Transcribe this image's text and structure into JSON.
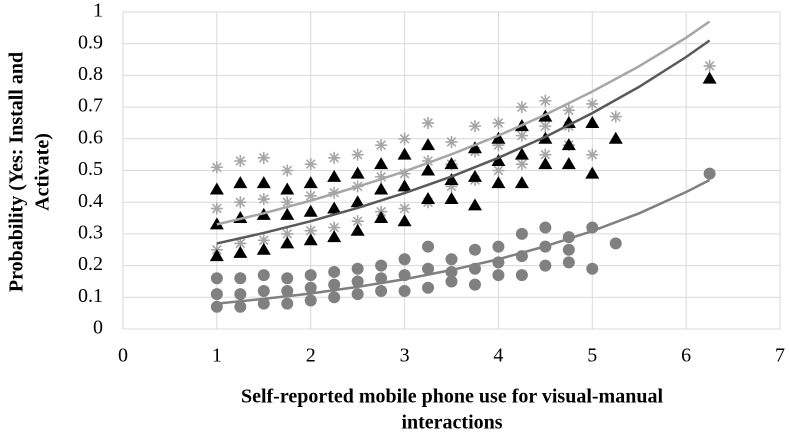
{
  "chart_data": {
    "type": "scatter",
    "x_label": [
      "Self-reported mobile phone use for visual-manual",
      "interactions"
    ],
    "y_label": [
      "Probability (Yes: Install and",
      "Activate)"
    ],
    "xlim": [
      0,
      7
    ],
    "xticks": [
      0,
      1,
      2,
      3,
      4,
      5,
      6,
      7
    ],
    "ylim": [
      0,
      1
    ],
    "yticks": [
      0,
      0.1,
      0.2,
      0.3,
      0.4,
      0.5,
      0.6,
      0.7,
      0.8,
      0.9,
      1
    ],
    "grid": true,
    "x": [
      1,
      1,
      1,
      1.25,
      1.25,
      1.25,
      1.5,
      1.5,
      1.5,
      1.75,
      1.75,
      1.75,
      2,
      2,
      2,
      2.25,
      2.25,
      2.25,
      2.5,
      2.5,
      2.5,
      2.75,
      2.75,
      2.75,
      3,
      3,
      3,
      3.25,
      3.25,
      3.25,
      3.5,
      3.5,
      3.5,
      3.75,
      3.75,
      3.75,
      4,
      4,
      4,
      4.25,
      4.25,
      4.25,
      4.5,
      4.5,
      4.5,
      4.75,
      4.75,
      4.75,
      5,
      5,
      5.25,
      6.25
    ],
    "series": [
      {
        "marker": "asterisk",
        "color": "#a6a6a6",
        "values": [
          0.25,
          0.38,
          0.51,
          0.27,
          0.4,
          0.53,
          0.28,
          0.41,
          0.54,
          0.3,
          0.4,
          0.5,
          0.31,
          0.42,
          0.52,
          0.32,
          0.43,
          0.54,
          0.34,
          0.45,
          0.55,
          0.37,
          0.48,
          0.58,
          0.38,
          0.49,
          0.6,
          0.4,
          0.53,
          0.65,
          0.45,
          0.52,
          0.59,
          0.47,
          0.56,
          0.64,
          0.5,
          0.58,
          0.65,
          0.52,
          0.61,
          0.7,
          0.55,
          0.64,
          0.72,
          0.58,
          0.64,
          0.69,
          0.55,
          0.71,
          0.67,
          0.83
        ]
      },
      {
        "marker": "triangle",
        "color": "#000000",
        "values": [
          0.23,
          0.33,
          0.44,
          0.24,
          0.35,
          0.46,
          0.25,
          0.36,
          0.46,
          0.27,
          0.36,
          0.44,
          0.28,
          0.37,
          0.46,
          0.29,
          0.38,
          0.48,
          0.31,
          0.4,
          0.49,
          0.35,
          0.44,
          0.52,
          0.34,
          0.45,
          0.55,
          0.41,
          0.5,
          0.58,
          0.41,
          0.47,
          0.52,
          0.39,
          0.48,
          0.57,
          0.46,
          0.53,
          0.6,
          0.46,
          0.55,
          0.64,
          0.52,
          0.6,
          0.67,
          0.52,
          0.58,
          0.65,
          0.49,
          0.65,
          0.6,
          0.79
        ]
      },
      {
        "marker": "circle",
        "color": "#808080",
        "values": [
          0.07,
          0.11,
          0.16,
          0.07,
          0.11,
          0.16,
          0.08,
          0.12,
          0.17,
          0.08,
          0.12,
          0.16,
          0.09,
          0.13,
          0.17,
          0.1,
          0.14,
          0.18,
          0.11,
          0.15,
          0.19,
          0.12,
          0.16,
          0.2,
          0.12,
          0.17,
          0.22,
          0.13,
          0.19,
          0.26,
          0.15,
          0.18,
          0.22,
          0.14,
          0.19,
          0.25,
          0.17,
          0.21,
          0.26,
          0.17,
          0.23,
          0.3,
          0.2,
          0.26,
          0.32,
          0.21,
          0.25,
          0.29,
          0.19,
          0.32,
          0.27,
          0.49
        ]
      }
    ],
    "trendlines": {
      "x": [
        1,
        1.5,
        2,
        2.5,
        3,
        3.5,
        4,
        4.5,
        5,
        5.5,
        6,
        6.25
      ],
      "series": [
        {
          "color": "#a6a6a6",
          "values": [
            0.33,
            0.365,
            0.405,
            0.449,
            0.497,
            0.551,
            0.61,
            0.676,
            0.749,
            0.829,
            0.919,
            0.97
          ]
        },
        {
          "color": "#595959",
          "values": [
            0.27,
            0.303,
            0.34,
            0.382,
            0.429,
            0.481,
            0.54,
            0.606,
            0.681,
            0.764,
            0.858,
            0.91
          ]
        },
        {
          "color": "#808080",
          "values": [
            0.08,
            0.095,
            0.112,
            0.133,
            0.157,
            0.186,
            0.22,
            0.261,
            0.309,
            0.365,
            0.432,
            0.47
          ]
        }
      ]
    }
  }
}
